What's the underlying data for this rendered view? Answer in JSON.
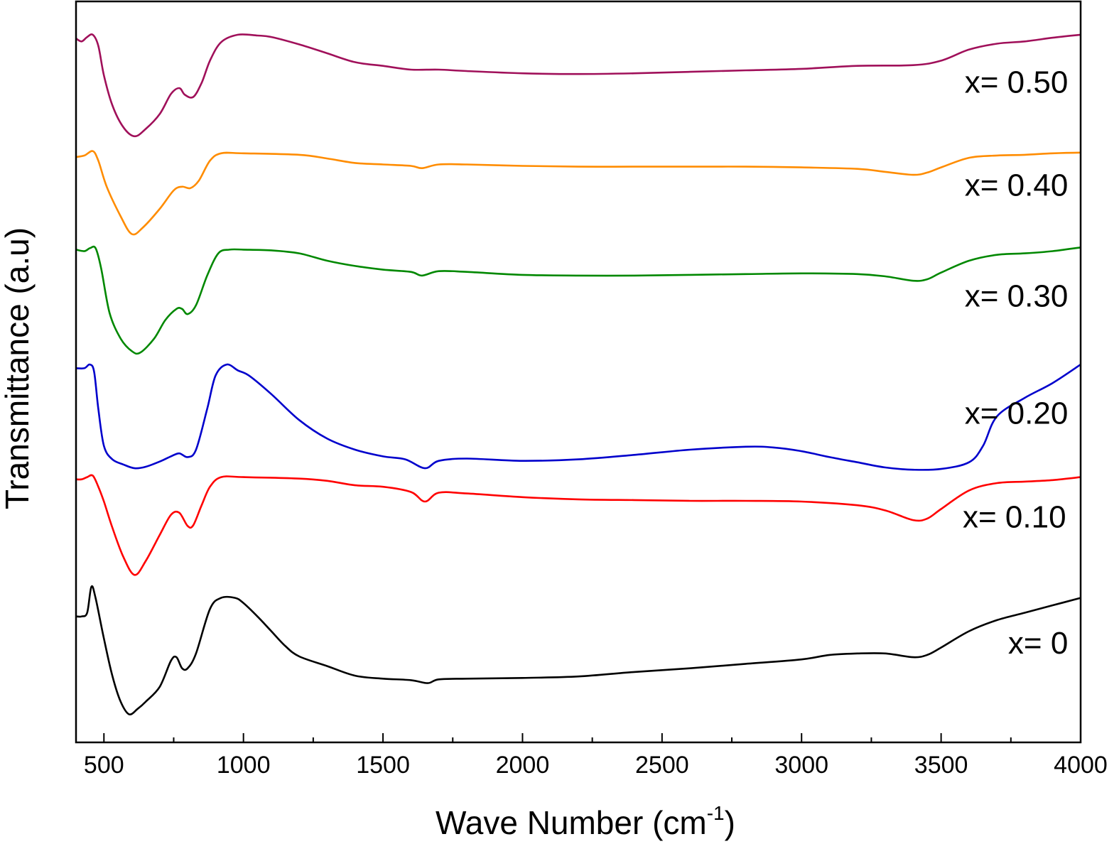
{
  "chart_data": {
    "type": "line",
    "xlabel": "Wave Number (cm",
    "xlabel_sup": "-1",
    "xlabel_close": ")",
    "ylabel": "Transmittance (a.u)",
    "xlim": [
      400,
      4000
    ],
    "x_ticks": [
      500,
      1000,
      1500,
      2000,
      2500,
      3000,
      3500,
      4000
    ],
    "x_tick_labels": [
      "500",
      "1000",
      "1500",
      "2000",
      "2500",
      "3000",
      "3500",
      "4000"
    ],
    "y_ticks_shown": false,
    "grid": false,
    "ylim": [
      0,
      100
    ],
    "series": [
      {
        "name": "x= 0",
        "color": "#000000",
        "points": [
          [
            400,
            17.0
          ],
          [
            420,
            17.0
          ],
          [
            440,
            17.5
          ],
          [
            455,
            21.0
          ],
          [
            470,
            19.5
          ],
          [
            500,
            14.0
          ],
          [
            530,
            9.0
          ],
          [
            560,
            5.5
          ],
          [
            590,
            3.8
          ],
          [
            620,
            4.5
          ],
          [
            650,
            5.5
          ],
          [
            700,
            7.5
          ],
          [
            740,
            11.0
          ],
          [
            760,
            11.5
          ],
          [
            780,
            10.0
          ],
          [
            800,
            10.0
          ],
          [
            830,
            12.0
          ],
          [
            880,
            18.0
          ],
          [
            920,
            19.5
          ],
          [
            970,
            19.5
          ],
          [
            1000,
            18.8
          ],
          [
            1050,
            17.0
          ],
          [
            1100,
            15.0
          ],
          [
            1150,
            13.0
          ],
          [
            1200,
            11.6
          ],
          [
            1300,
            10.3
          ],
          [
            1400,
            9.0
          ],
          [
            1500,
            8.6
          ],
          [
            1600,
            8.4
          ],
          [
            1660,
            8.0
          ],
          [
            1700,
            8.5
          ],
          [
            1800,
            8.6
          ],
          [
            2000,
            8.7
          ],
          [
            2200,
            8.9
          ],
          [
            2400,
            9.5
          ],
          [
            2600,
            10.0
          ],
          [
            2800,
            10.6
          ],
          [
            3000,
            11.2
          ],
          [
            3100,
            11.8
          ],
          [
            3200,
            12.0
          ],
          [
            3300,
            12.0
          ],
          [
            3400,
            11.5
          ],
          [
            3450,
            11.8
          ],
          [
            3500,
            12.8
          ],
          [
            3600,
            15.0
          ],
          [
            3700,
            16.5
          ],
          [
            3800,
            17.5
          ],
          [
            3900,
            18.5
          ],
          [
            4000,
            19.5
          ]
        ]
      },
      {
        "name": "x= 0.10",
        "color": "#ff0000",
        "points": [
          [
            400,
            35.5
          ],
          [
            420,
            35.5
          ],
          [
            440,
            35.8
          ],
          [
            460,
            36.0
          ],
          [
            480,
            34.5
          ],
          [
            500,
            32.5
          ],
          [
            530,
            29.0
          ],
          [
            570,
            25.0
          ],
          [
            610,
            22.6
          ],
          [
            650,
            24.5
          ],
          [
            700,
            28.0
          ],
          [
            740,
            30.7
          ],
          [
            770,
            31.0
          ],
          [
            800,
            29.2
          ],
          [
            820,
            29.3
          ],
          [
            850,
            32.0
          ],
          [
            880,
            34.5
          ],
          [
            920,
            35.8
          ],
          [
            1000,
            35.8
          ],
          [
            1200,
            35.6
          ],
          [
            1300,
            35.3
          ],
          [
            1400,
            34.7
          ],
          [
            1500,
            34.5
          ],
          [
            1600,
            33.8
          ],
          [
            1650,
            32.5
          ],
          [
            1700,
            33.7
          ],
          [
            1800,
            33.6
          ],
          [
            2000,
            33.1
          ],
          [
            2200,
            32.8
          ],
          [
            2400,
            32.7
          ],
          [
            2600,
            32.6
          ],
          [
            2800,
            32.6
          ],
          [
            3000,
            32.5
          ],
          [
            3200,
            32.0
          ],
          [
            3300,
            31.3
          ],
          [
            3400,
            30.0
          ],
          [
            3450,
            30.2
          ],
          [
            3500,
            31.5
          ],
          [
            3600,
            34.0
          ],
          [
            3700,
            35.0
          ],
          [
            3800,
            35.2
          ],
          [
            3900,
            35.4
          ],
          [
            4000,
            35.8
          ]
        ]
      },
      {
        "name": "x= 0.20",
        "color": "#0000cc",
        "points": [
          [
            400,
            50.5
          ],
          [
            430,
            50.5
          ],
          [
            450,
            51.0
          ],
          [
            465,
            50.0
          ],
          [
            480,
            45.0
          ],
          [
            500,
            40.0
          ],
          [
            530,
            38.2
          ],
          [
            570,
            37.5
          ],
          [
            610,
            37.0
          ],
          [
            650,
            37.2
          ],
          [
            700,
            37.9
          ],
          [
            740,
            38.6
          ],
          [
            770,
            39.0
          ],
          [
            800,
            38.5
          ],
          [
            830,
            39.5
          ],
          [
            870,
            45.0
          ],
          [
            900,
            49.5
          ],
          [
            940,
            51.0
          ],
          [
            980,
            50.2
          ],
          [
            1020,
            49.5
          ],
          [
            1100,
            47.0
          ],
          [
            1200,
            43.5
          ],
          [
            1300,
            41.0
          ],
          [
            1400,
            39.5
          ],
          [
            1500,
            38.6
          ],
          [
            1580,
            38.2
          ],
          [
            1650,
            37.0
          ],
          [
            1700,
            38.0
          ],
          [
            1800,
            38.3
          ],
          [
            2000,
            38.0
          ],
          [
            2200,
            38.2
          ],
          [
            2400,
            38.8
          ],
          [
            2600,
            39.5
          ],
          [
            2800,
            39.9
          ],
          [
            2900,
            39.8
          ],
          [
            3000,
            39.3
          ],
          [
            3100,
            38.5
          ],
          [
            3200,
            37.8
          ],
          [
            3300,
            37.1
          ],
          [
            3400,
            36.8
          ],
          [
            3500,
            36.9
          ],
          [
            3600,
            37.8
          ],
          [
            3650,
            40.0
          ],
          [
            3700,
            44.0
          ],
          [
            3800,
            46.5
          ],
          [
            3900,
            48.5
          ],
          [
            4000,
            51.0
          ]
        ]
      },
      {
        "name": "x= 0.30",
        "color": "#008800",
        "points": [
          [
            400,
            66.5
          ],
          [
            430,
            66.3
          ],
          [
            450,
            66.7
          ],
          [
            470,
            66.7
          ],
          [
            490,
            64.0
          ],
          [
            520,
            58.0
          ],
          [
            560,
            54.5
          ],
          [
            600,
            52.8
          ],
          [
            630,
            52.6
          ],
          [
            680,
            54.5
          ],
          [
            720,
            57.0
          ],
          [
            760,
            58.5
          ],
          [
            780,
            58.5
          ],
          [
            800,
            57.8
          ],
          [
            830,
            59.0
          ],
          [
            870,
            63.0
          ],
          [
            910,
            66.0
          ],
          [
            950,
            66.5
          ],
          [
            1000,
            66.5
          ],
          [
            1100,
            66.4
          ],
          [
            1200,
            66.0
          ],
          [
            1300,
            65.0
          ],
          [
            1400,
            64.3
          ],
          [
            1500,
            63.8
          ],
          [
            1600,
            63.5
          ],
          [
            1640,
            63.0
          ],
          [
            1700,
            63.6
          ],
          [
            1800,
            63.5
          ],
          [
            2000,
            63.1
          ],
          [
            2200,
            63.0
          ],
          [
            2400,
            63.0
          ],
          [
            2600,
            63.1
          ],
          [
            2800,
            63.2
          ],
          [
            3000,
            63.3
          ],
          [
            3200,
            63.2
          ],
          [
            3300,
            62.9
          ],
          [
            3400,
            62.3
          ],
          [
            3450,
            62.5
          ],
          [
            3500,
            63.4
          ],
          [
            3600,
            65.0
          ],
          [
            3700,
            65.8
          ],
          [
            3800,
            66.0
          ],
          [
            3900,
            66.3
          ],
          [
            4000,
            66.8
          ]
        ]
      },
      {
        "name": "x= 0.40",
        "color": "#ff8c00",
        "points": [
          [
            400,
            79.0
          ],
          [
            430,
            79.2
          ],
          [
            460,
            79.8
          ],
          [
            480,
            78.5
          ],
          [
            510,
            75.0
          ],
          [
            560,
            71.0
          ],
          [
            600,
            68.6
          ],
          [
            640,
            69.5
          ],
          [
            700,
            72.0
          ],
          [
            750,
            74.5
          ],
          [
            780,
            75.0
          ],
          [
            810,
            74.8
          ],
          [
            840,
            75.8
          ],
          [
            880,
            78.5
          ],
          [
            920,
            79.5
          ],
          [
            1000,
            79.5
          ],
          [
            1200,
            79.3
          ],
          [
            1300,
            78.8
          ],
          [
            1400,
            78.2
          ],
          [
            1500,
            78.0
          ],
          [
            1600,
            77.8
          ],
          [
            1640,
            77.5
          ],
          [
            1700,
            78.0
          ],
          [
            1800,
            78.0
          ],
          [
            2000,
            77.8
          ],
          [
            2200,
            77.7
          ],
          [
            2400,
            77.7
          ],
          [
            2600,
            77.7
          ],
          [
            2800,
            77.7
          ],
          [
            3000,
            77.6
          ],
          [
            3200,
            77.4
          ],
          [
            3300,
            77.0
          ],
          [
            3400,
            76.6
          ],
          [
            3450,
            76.9
          ],
          [
            3500,
            77.6
          ],
          [
            3600,
            78.9
          ],
          [
            3700,
            79.2
          ],
          [
            3800,
            79.3
          ],
          [
            3900,
            79.5
          ],
          [
            4000,
            79.6
          ]
        ]
      },
      {
        "name": "x= 0.50",
        "color": "#a0105a",
        "points": [
          [
            400,
            95.0
          ],
          [
            420,
            94.6
          ],
          [
            440,
            95.2
          ],
          [
            460,
            95.5
          ],
          [
            480,
            94.0
          ],
          [
            500,
            90.0
          ],
          [
            530,
            86.0
          ],
          [
            570,
            83.0
          ],
          [
            610,
            81.8
          ],
          [
            650,
            82.8
          ],
          [
            700,
            84.8
          ],
          [
            740,
            87.5
          ],
          [
            770,
            88.3
          ],
          [
            790,
            87.4
          ],
          [
            820,
            87.1
          ],
          [
            850,
            89.0
          ],
          [
            880,
            92.0
          ],
          [
            920,
            94.5
          ],
          [
            980,
            95.5
          ],
          [
            1050,
            95.4
          ],
          [
            1100,
            95.2
          ],
          [
            1200,
            94.2
          ],
          [
            1300,
            93.0
          ],
          [
            1400,
            91.8
          ],
          [
            1500,
            91.3
          ],
          [
            1600,
            90.8
          ],
          [
            1700,
            90.8
          ],
          [
            1800,
            90.6
          ],
          [
            2000,
            90.3
          ],
          [
            2200,
            90.2
          ],
          [
            2400,
            90.3
          ],
          [
            2600,
            90.5
          ],
          [
            2800,
            90.7
          ],
          [
            3000,
            90.9
          ],
          [
            3200,
            91.3
          ],
          [
            3400,
            91.4
          ],
          [
            3500,
            92.0
          ],
          [
            3600,
            93.5
          ],
          [
            3700,
            94.3
          ],
          [
            3800,
            94.6
          ],
          [
            3900,
            95.1
          ],
          [
            4000,
            95.5
          ]
        ]
      }
    ],
    "annotations": [
      {
        "text": "x= 0.50",
        "x": 3955,
        "y": 87.7
      },
      {
        "text": "x= 0.40",
        "x": 3955,
        "y": 73.8
      },
      {
        "text": "x= 0.30",
        "x": 3955,
        "y": 58.8
      },
      {
        "text": "x= 0.20",
        "x": 3955,
        "y": 43.0
      },
      {
        "text": "x= 0.10",
        "x": 3948,
        "y": 29.0
      },
      {
        "text": "x= 0",
        "x": 3955,
        "y": 12.0
      }
    ]
  }
}
